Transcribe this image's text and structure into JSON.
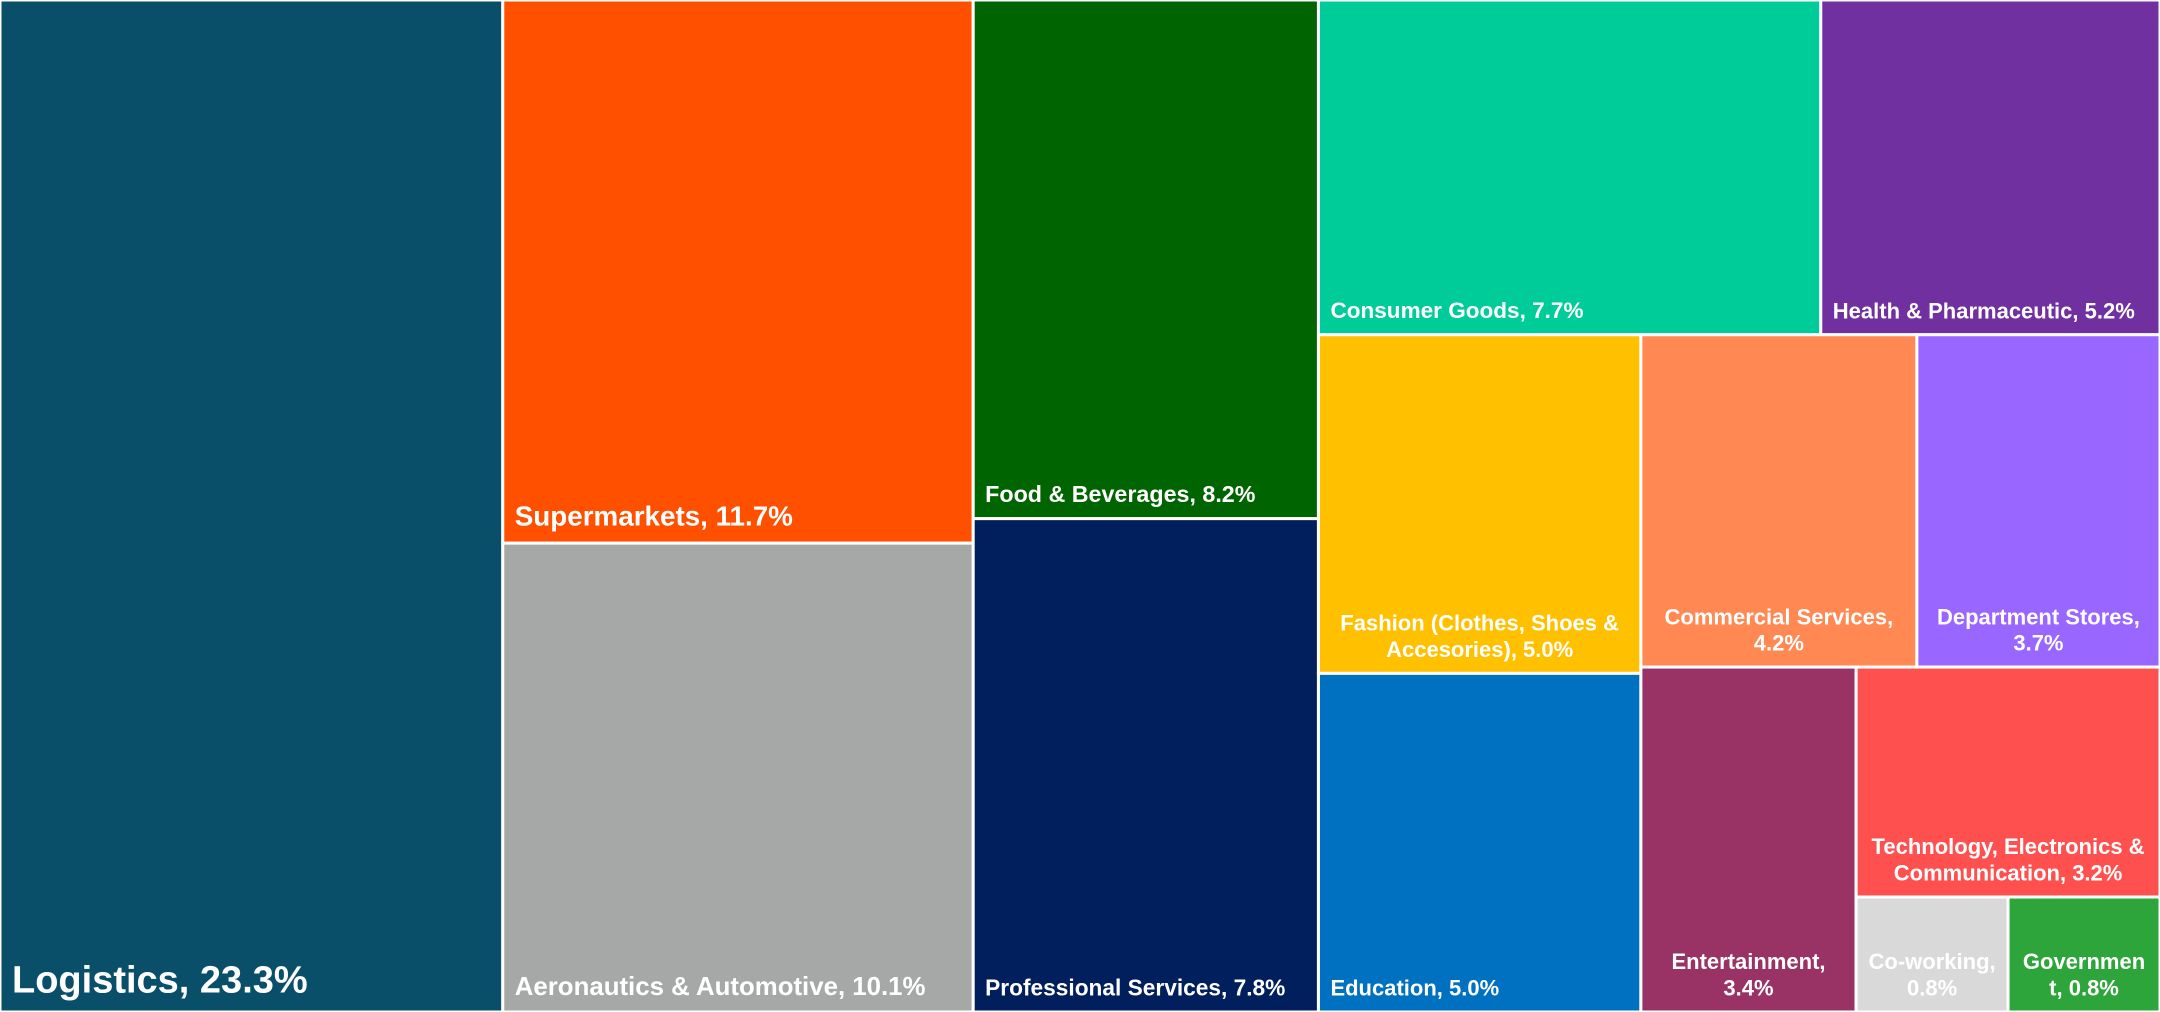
{
  "chart_data": {
    "type": "treemap",
    "labels": [
      "Logistics, 23.3%",
      "Supermarkets, 11.7%",
      "Aeronautics & Automotive, 10.1%",
      "Food & Beverages, 8.2%",
      "Professional Services, 7.8%",
      "Consumer Goods, 7.7%",
      "Health & Pharmaceutic, 5.2%",
      "Fashion (Clothes, Shoes & Accesories), 5.0%",
      "Education, 5.0%",
      "Commercial Services, 4.2%",
      "Department Stores, 3.7%",
      "Entertainment, 3.4%",
      "Technology, Electronics & Communication, 3.2%",
      "Co-working, 0.8%",
      "Government, 0.8%"
    ],
    "values": [
      23.3,
      11.7,
      10.1,
      8.2,
      7.8,
      7.7,
      5.2,
      5.0,
      5.0,
      4.2,
      3.7,
      3.4,
      3.2,
      0.8,
      0.8
    ],
    "colors": [
      "#0a4f6a",
      "#ff5000",
      "#a6a8a7",
      "#006400",
      "#001f5c",
      "#00cc99",
      "#7030a0",
      "#ffc000",
      "#0070c0",
      "#ff8853",
      "#9966ff",
      "#993366",
      "#ff5050",
      "#d9d9d9",
      "#2ea53a"
    ]
  }
}
